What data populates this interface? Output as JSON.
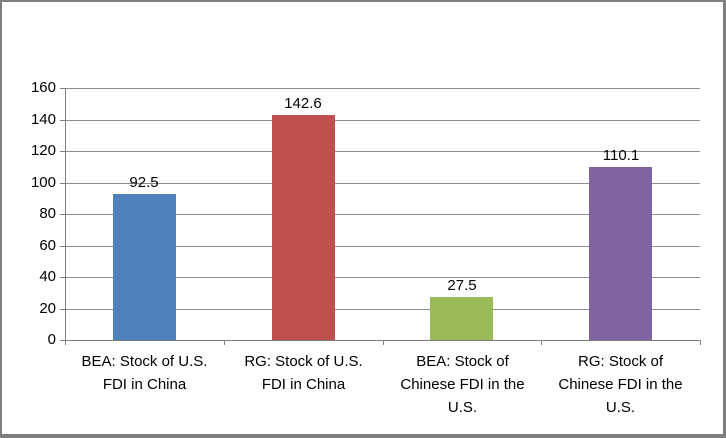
{
  "chart_data": {
    "type": "bar",
    "title": "",
    "xlabel": "",
    "ylabel": "",
    "categories": [
      "BEA: Stock of U.S. FDI in China",
      "RG: Stock of U.S. FDI in China",
      "BEA: Stock of Chinese FDI in the U.S.",
      "RG: Stock of Chinese FDI in the U.S."
    ],
    "category_label_lines": [
      [
        "BEA: Stock of U.S.",
        "FDI in China"
      ],
      [
        "RG: Stock of U.S.",
        "FDI in China"
      ],
      [
        "BEA: Stock of",
        "Chinese FDI in the",
        "U.S."
      ],
      [
        "RG: Stock of",
        "Chinese FDI in the",
        "U.S."
      ]
    ],
    "values": [
      92.5,
      142.6,
      27.5,
      110.1
    ],
    "value_labels": [
      "92.5",
      "142.6",
      "27.5",
      "110.1"
    ],
    "bar_colors": [
      "#4F81BD",
      "#C0504D",
      "#9BBB59",
      "#8064A2"
    ],
    "ylim": [
      0,
      160
    ],
    "yticks": [
      0,
      20,
      40,
      60,
      80,
      100,
      120,
      140,
      160
    ],
    "grid": true,
    "legend": "none",
    "colors": {
      "gridline": "#8c8c8c",
      "axis": "#7f7f7f",
      "text": "#000000",
      "background": "#ffffff",
      "frame_border": "#7f7f7f"
    }
  }
}
